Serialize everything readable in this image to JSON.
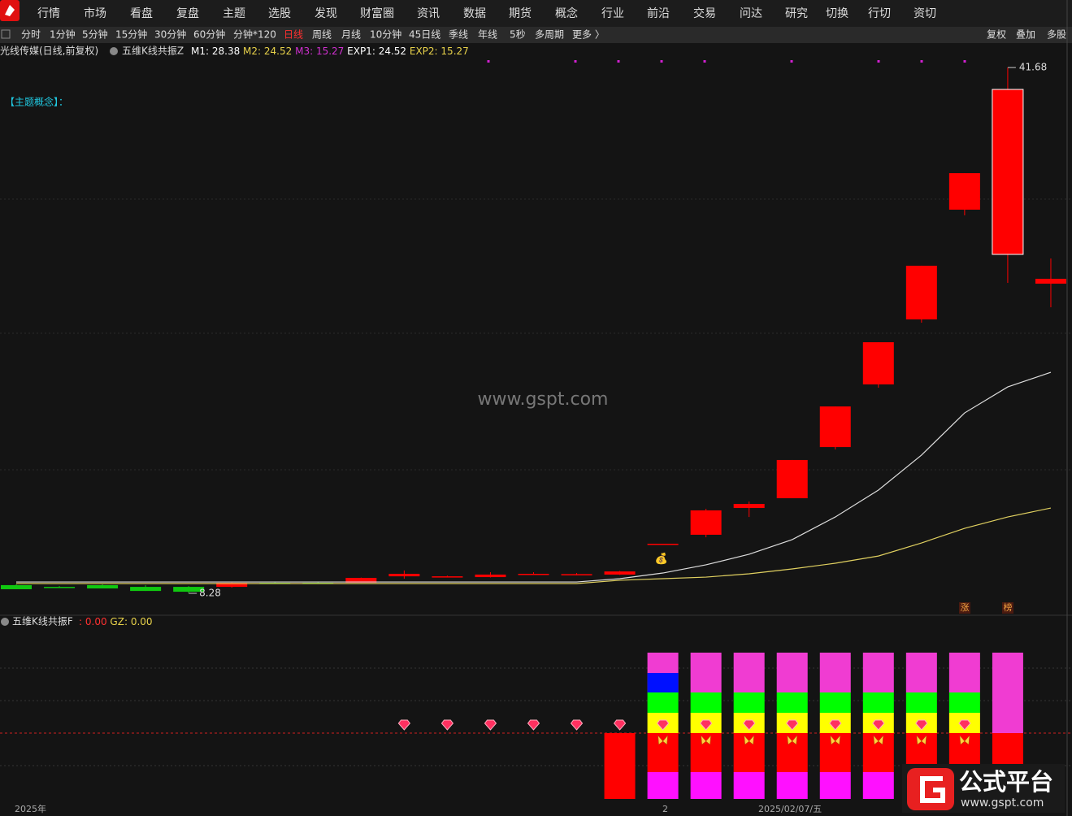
{
  "menu": [
    "行情",
    "市场",
    "看盘",
    "复盘",
    "主题",
    "选股",
    "发现",
    "财富圈",
    "资讯",
    "数据",
    "期货",
    "概念",
    "行业",
    "前沿",
    "交易",
    "问达",
    "研究",
    "切换",
    "行切",
    "资切"
  ],
  "periods": [
    {
      "label": "分时",
      "active": false
    },
    {
      "label": "1分钟",
      "active": false
    },
    {
      "label": "5分钟",
      "active": false
    },
    {
      "label": "15分钟",
      "active": false
    },
    {
      "label": "30分钟",
      "active": false
    },
    {
      "label": "60分钟",
      "active": false
    },
    {
      "label": "分钟*120",
      "active": false
    },
    {
      "label": "日线",
      "active": true
    },
    {
      "label": "周线",
      "active": false
    },
    {
      "label": "月线",
      "active": false
    },
    {
      "label": "10分钟",
      "active": false
    },
    {
      "label": "45日线",
      "active": false
    },
    {
      "label": "季线",
      "active": false
    },
    {
      "label": "年线",
      "active": false
    },
    {
      "label": "5秒",
      "active": false
    },
    {
      "label": "多周期",
      "active": false
    },
    {
      "label": "更多 〉",
      "active": false
    }
  ],
  "toolbar_right": [
    "复权",
    "叠加",
    "多股"
  ],
  "chart_data": {
    "type": "candlestick",
    "title": "光线传媒(日线,前复权)",
    "indicator_name": "五维K线共振Z",
    "indicators": [
      {
        "name": "M1:",
        "value": 28.38,
        "color": "#ffffff"
      },
      {
        "name": "M2:",
        "value": 24.52,
        "color": "#e8d24a"
      },
      {
        "name": "M3:",
        "value": 15.27,
        "color": "#d030d0"
      },
      {
        "name": "EXP1:",
        "value": 24.52,
        "color": "#ffffff"
      },
      {
        "name": "EXP2:",
        "value": 15.27,
        "color": "#e8d24a"
      }
    ],
    "theme_label": "【主题概念】：",
    "watermark": "www.gspt.com",
    "open": [
      8.8,
      8.69,
      8.8,
      8.69,
      8.69,
      8.69,
      8.95,
      8.95,
      8.95,
      9.36,
      9.31,
      9.31,
      9.47,
      9.45,
      9.47,
      11.38,
      12.0,
      13.7,
      14.32,
      17.57,
      21.55,
      25.68,
      32.65,
      29.81,
      27.95
    ],
    "high": [
      8.85,
      8.74,
      8.85,
      8.8,
      8.74,
      8.97,
      9.0,
      9.0,
      9.28,
      9.73,
      9.4,
      9.62,
      9.62,
      9.57,
      9.7,
      11.43,
      13.65,
      14.11,
      16.75,
      20.15,
      24.23,
      29.09,
      34.97,
      41.68,
      29.55
    ],
    "low": [
      8.54,
      8.64,
      8.59,
      8.43,
      8.28,
      8.64,
      8.88,
      8.9,
      8.95,
      9.21,
      9.29,
      9.29,
      9.45,
      9.42,
      9.45,
      11.38,
      11.84,
      13.13,
      14.32,
      17.42,
      21.34,
      25.47,
      32.29,
      28.0,
      26.45
    ],
    "close": [
      8.54,
      8.64,
      8.59,
      8.43,
      8.38,
      8.95,
      8.9,
      8.93,
      9.26,
      9.52,
      9.36,
      9.47,
      9.52,
      9.5,
      9.67,
      11.43,
      13.55,
      13.96,
      16.75,
      20.15,
      24.23,
      29.09,
      34.97,
      40.29,
      28.26
    ],
    "up_color": "#ff0000",
    "down_color": "#10c810",
    "series": [
      {
        "color": "#dddddd",
        "values": [
          9.0,
          9.0,
          9.0,
          9.0,
          9.0,
          9.0,
          9.0,
          9.0,
          9.0,
          9.0,
          9.0,
          9.0,
          9.0,
          9.0,
          9.21,
          9.57,
          10.09,
          10.76,
          11.69,
          13.13,
          14.84,
          17.06,
          19.74,
          21.39,
          22.32
        ]
      },
      {
        "color": "#e0d060",
        "values": [
          8.9,
          8.9,
          8.9,
          8.9,
          8.9,
          8.9,
          8.9,
          8.9,
          8.9,
          8.9,
          8.9,
          8.9,
          8.9,
          8.9,
          9.11,
          9.21,
          9.31,
          9.52,
          9.83,
          10.19,
          10.65,
          11.48,
          12.41,
          13.13,
          13.7
        ]
      }
    ],
    "ylim": [
      6.99,
      43.13
    ],
    "high_label": 41.68,
    "low_label": 8.28,
    "tags": [
      "涨",
      "榜"
    ],
    "x_labels": [
      "2025年",
      "2",
      "2025/02/07/五"
    ]
  },
  "sub_chart": {
    "name": "五维K线共振F",
    "indicators": [
      {
        "name": ":",
        "value": {
          "value": 0,
          "label": "0.00"
        },
        "color": "#ff3030"
      },
      {
        "name": "GZ:",
        "value": {
          "value": 0,
          "label": "0.00"
        },
        "color": "#e8d24a"
      }
    ]
  },
  "logo": {
    "title": "公式平台",
    "url": "www.gspt.com"
  }
}
